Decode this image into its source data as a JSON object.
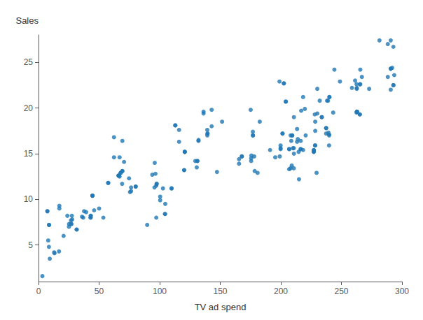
{
  "chart_data": {
    "type": "scatter",
    "x": [
      230.1,
      44.5,
      17.2,
      151.5,
      180.8,
      8.7,
      57.5,
      120.2,
      8.6,
      199.8,
      66.1,
      214.7,
      23.8,
      97.5,
      204.1,
      195.4,
      67.8,
      281.4,
      69.2,
      147.3,
      218.4,
      237.4,
      13.2,
      228.3,
      62.3,
      262.9,
      142.9,
      240.1,
      248.8,
      70.6,
      292.9,
      112.9,
      97.2,
      265.6,
      95.7,
      290.7,
      266.9,
      74.7,
      43.1,
      228.0,
      202.5,
      177.0,
      293.6,
      206.9,
      25.1,
      175.1,
      89.7,
      239.9,
      227.2,
      66.9,
      199.8,
      100.4,
      216.4,
      182.6,
      262.7,
      198.9,
      7.3,
      136.2,
      210.8,
      210.7,
      53.5,
      261.3,
      239.3,
      102.7,
      131.1,
      69.0,
      31.5,
      139.3,
      237.4,
      216.8,
      199.1,
      109.8,
      26.8,
      129.4,
      213.4,
      16.9,
      27.5,
      120.7,
      290.7,
      208.6,
      177.0,
      216.4,
      292.9,
      175.7,
      175.5,
      208.1,
      8.0,
      214.0,
      239.8,
      227.2,
      265.2,
      176.9,
      132.1,
      27.2,
      69.2,
      228.4,
      62.3,
      35.9,
      165.5,
      178.0,
      213.4,
      66.1,
      218.4,
      201.4,
      175.5,
      97.5,
      132.0,
      206.9,
      142.9,
      208.0,
      12.9,
      139.5,
      27.8,
      262.7,
      43.0,
      116.0,
      76.4,
      239.8,
      210.0,
      139.3,
      130.6,
      116.0,
      201.4,
      7.3,
      237.4,
      136.2,
      97.2,
      66.9,
      199.8,
      209.4,
      36.9,
      93.9,
      25.2,
      191.1,
      238.2,
      75.5,
      17.2,
      210.8,
      76.4,
      210.7,
      104.6,
      80.2,
      26.8,
      219.8,
      104.4,
      96.5,
      31.5,
      104.4,
      50.0,
      8.7,
      20.7,
      227.2,
      37.6,
      291.9,
      230.1,
      112.9,
      178.4,
      45.9,
      120.2,
      120.7,
      44.5,
      265.2,
      262.7,
      100.4,
      288.3,
      131.1,
      43.1,
      206.9,
      44.5,
      292.9,
      165.5,
      109.8,
      43.0,
      204.1,
      139.5,
      66.1,
      215.0,
      69.2,
      228.3,
      243.2,
      227.2,
      229.5,
      232.1,
      209.4,
      67.8,
      262.5,
      95.9,
      290.7,
      39.3,
      240.1,
      290.7,
      233.8,
      167.8,
      228.4,
      209.0,
      9.3,
      238.9,
      220.5,
      167.8,
      272.9,
      216.4,
      265.2,
      233.8,
      262.9,
      202.5,
      57.5,
      288.3,
      258.7,
      262.5,
      80.2,
      120.7,
      3.2,
      244.2,
      265.6
    ],
    "values": [
      22.1,
      10.4,
      9.3,
      18.5,
      12.9,
      7.2,
      11.8,
      13.2,
      4.8,
      15.6,
      12.6,
      15.2,
      8.2,
      11.7,
      20.7,
      14.6,
      12.9,
      27.4,
      16.4,
      13.0,
      21.2,
      17.8,
      4.1,
      15.9,
      14.6,
      19.6,
      19.8,
      21.2,
      22.9,
      14.1,
      26.7,
      18.1,
      8.0,
      24.2,
      11.3,
      27.4,
      23.4,
      12.3,
      8.2,
      19.3,
      22.7,
      17.0,
      23.6,
      15.5,
      7.0,
      19.8,
      7.2,
      17.0,
      15.2,
      14.6,
      15.5,
      9.9,
      16.4,
      18.5,
      19.6,
      22.9,
      8.7,
      19.6,
      19.0,
      15.6,
      8.0,
      23.0,
      17.3,
      11.2,
      14.2,
      11.7,
      6.7,
      17.6,
      17.2,
      19.7,
      14.7,
      11.2,
      7.7,
      14.2,
      17.7,
      4.3,
      8.2,
      15.2,
      24.3,
      16.4,
      17.0,
      15.5,
      22.5,
      14.8,
      14.2,
      17.0,
      5.5,
      16.6,
      17.1,
      15.2,
      22.6,
      17.4,
      16.5,
      7.3,
      13.1,
      17.5,
      16.8,
      8.1,
      14.4,
      14.7,
      16.3,
      12.6,
      15.4,
      17.2,
      14.5,
      11.7,
      16.4,
      13.3,
      18.0,
      13.4,
      4.2,
      17.2,
      7.8,
      22.1,
      8.0,
      16.3,
      10.9,
      15.9,
      15.6,
      17.0,
      13.5,
      17.6,
      17.2,
      8.7,
      17.8,
      19.4,
      11.5,
      12.5,
      15.9,
      17.0,
      8.0,
      12.7,
      7.3,
      15.4,
      20.8,
      10.8,
      9.0,
      15.0,
      11.3,
      13.4,
      9.5,
      11.4,
      7.3,
      19.9,
      8.4,
      12.8,
      6.7,
      8.4,
      9.0,
      7.2,
      6.0,
      15.4,
      8.7,
      24.4,
      19.4,
      18.1,
      13.1,
      8.8,
      13.2,
      15.2,
      10.4,
      19.3,
      22.2,
      10.3,
      27.0,
      14.2,
      8.2,
      15.5,
      10.4,
      22.5,
      13.9,
      11.2,
      8.0,
      20.7,
      17.2,
      12.6,
      12.2,
      13.1,
      15.9,
      19.5,
      15.4,
      12.9,
      20.8,
      17.0,
      12.9,
      22.6,
      14.0,
      22.0,
      8.6,
      21.2,
      24.3,
      19.0,
      14.7,
      18.5,
      13.7,
      3.5,
      20.8,
      17.0,
      14.7,
      22.1,
      15.5,
      19.3,
      19.0,
      19.6,
      22.7,
      11.8,
      23.4,
      22.2,
      19.5,
      11.4,
      15.2,
      1.6,
      24.2,
      22.6
    ],
    "color": "#1f77b4",
    "xlabel": "TV ad spend",
    "ylabel": "Sales",
    "xlim": [
      0,
      300
    ],
    "ylim": [
      1,
      28
    ],
    "xticks": [
      0,
      50,
      100,
      150,
      200,
      250,
      300
    ],
    "yticks": [
      5,
      10,
      15,
      20,
      25
    ],
    "grid": false
  }
}
